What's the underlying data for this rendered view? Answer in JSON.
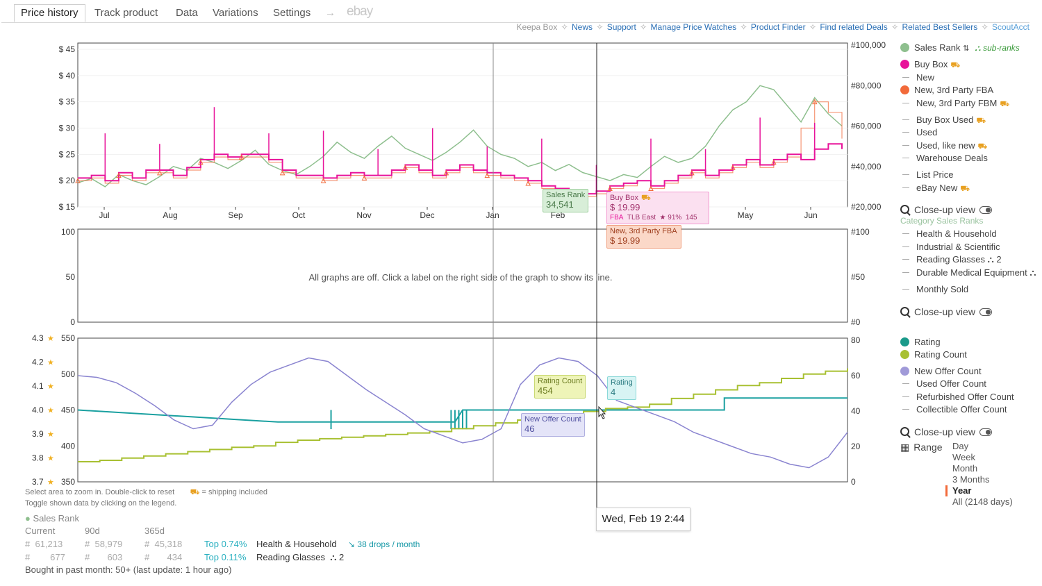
{
  "tabs": {
    "price_history": "Price history",
    "track_product": "Track product",
    "data": "Data",
    "variations": "Variations",
    "settings": "Settings",
    "arrow": "→",
    "ebay": "ebay"
  },
  "links": {
    "keepa_box": "Keepa Box",
    "news": "News",
    "support": "Support",
    "manage_price_watches": "Manage Price Watches",
    "product_finder": "Product Finder",
    "find_related_deals": "Find related Deals",
    "related_best_sellers": "Related Best Sellers",
    "scoutacct": "ScoutAcct",
    "separator": "✧"
  },
  "legend_top": {
    "sales_rank": "Sales Rank",
    "sub_ranks": "sub-ranks",
    "buy_box": "Buy Box",
    "new": "New",
    "new_3p_fba": "New, 3rd Party FBA",
    "new_3p_fbm": "New, 3rd Party FBM",
    "buy_box_used": "Buy Box Used",
    "used": "Used",
    "used_like_new": "Used, like new",
    "warehouse_deals": "Warehouse Deals",
    "list_price": "List Price",
    "ebay_new": "eBay New",
    "close_up_view": "Close-up view",
    "colors": {
      "sales_rank": "#8ebf8e",
      "buy_box": "#e8139a",
      "new_3p_fba": "#f26a3a"
    }
  },
  "legend_mid": {
    "category_sales_ranks": "Category Sales Ranks",
    "health_household": "Health & Household",
    "industrial_scientific": "Industrial & Scientific",
    "reading_glasses": "Reading Glasses",
    "reading_glasses_count": "2",
    "durable_medical": "Durable Medical Equipment",
    "monthly_sold": "Monthly Sold",
    "close_up_view": "Close-up view"
  },
  "legend_bottom": {
    "rating": "Rating",
    "rating_count": "Rating Count",
    "new_offer_count": "New Offer Count",
    "used_offer_count": "Used Offer Count",
    "refurbished_offer_count": "Refurbished Offer Count",
    "collectible_offer_count": "Collectible Offer Count",
    "close_up_view": "Close-up view",
    "range": "Range",
    "range_options": [
      "Day",
      "Week",
      "Month",
      "3 Months",
      "Year",
      "All (2148 days)"
    ],
    "range_selected": "Year",
    "colors": {
      "rating": "#1a9a8a",
      "rating_count": "#a8c032",
      "new_offer_count": "#a09ad8"
    }
  },
  "tooltips": {
    "sales_rank_label": "Sales Rank",
    "sales_rank_value": "34,541",
    "buy_box_label": "Buy Box",
    "buy_box_value": "$ 19.99",
    "buy_box_fba": "FBA",
    "buy_box_seller": "TLB East",
    "buy_box_rating": "★ 91%",
    "buy_box_count": "145",
    "fba_label": "New, 3rd Party FBA",
    "fba_value": "$ 19.99",
    "rating_count_label": "Rating Count",
    "rating_count_value": "454",
    "rating_label": "Rating",
    "rating_value": "4",
    "offer_label": "New Offer Count",
    "offer_value": "46",
    "date": "Wed, Feb 19 2:44"
  },
  "middle_message": "All graphs are off. Click a label on the right side of the graph to show its line.",
  "notes": {
    "zoom": "Select area to zoom in. Double-click to reset",
    "shipping": "= shipping included",
    "toggle": "Toggle shown data by clicking on the legend."
  },
  "sales_rank_table": {
    "title": "Sales Rank",
    "headers": [
      "Current",
      "90d",
      "365d"
    ],
    "hash": "#",
    "rows": [
      {
        "current": "61,213",
        "d90": "58,979",
        "d365": "45,318",
        "top": "Top 0.74%",
        "category": "Health & Household",
        "drops": "38 drops / month"
      },
      {
        "current": "677",
        "d90": "603",
        "d365": "434",
        "top": "Top 0.11%",
        "category": "Reading Glasses",
        "count": "2"
      }
    ],
    "bought": "Bought in past month: 50+ (last update: 1 hour ago)"
  },
  "chart_data": [
    {
      "type": "line",
      "x_ticks": [
        "Jul",
        "Aug",
        "Sep",
        "Oct",
        "Nov",
        "Dec",
        "Jan",
        "Feb",
        "May",
        "Jun"
      ],
      "y_left_ticks": [
        "$ 45",
        "$ 40",
        "$ 35",
        "$ 30",
        "$ 25",
        "$ 20",
        "$ 15"
      ],
      "y_right_ticks": [
        "#100,000",
        "#80,000",
        "#60,000",
        "#40,000",
        "#20,000"
      ],
      "ylim_left": [
        15,
        45
      ],
      "ylim_right": [
        20000,
        100000
      ],
      "series": [
        {
          "name": "Sales Rank",
          "axis": "right",
          "values": [
            32000,
            34000,
            30000,
            36000,
            33000,
            31000,
            35000,
            40000,
            38000,
            44000,
            42000,
            39000,
            43000,
            48000,
            41000,
            38000,
            36000,
            40000,
            45000,
            52000,
            47000,
            44000,
            50000,
            55000,
            49000,
            46000,
            43000,
            47000,
            52000,
            58000,
            50000,
            46000,
            44000,
            40000,
            42000,
            38000,
            41000,
            37000,
            35000,
            33000,
            36000,
            34541,
            40000,
            45000,
            42000,
            44000,
            50000,
            60000,
            68000,
            72000,
            80000,
            78000,
            70000,
            62000,
            74000,
            66000,
            60000
          ]
        },
        {
          "name": "Buy Box",
          "axis": "left",
          "values": [
            20.5,
            21,
            20,
            21.5,
            20.5,
            22,
            22,
            21,
            22.5,
            24,
            25,
            24.5,
            25,
            25,
            24,
            22,
            21,
            21,
            20.5,
            21,
            21.5,
            21,
            21,
            22,
            23,
            22,
            21,
            22,
            23,
            22,
            21.5,
            21,
            20.5,
            20,
            19,
            18.5,
            18,
            17.5,
            18,
            19,
            19.5,
            19.99,
            19,
            20,
            21,
            22,
            21,
            22,
            23,
            24,
            23,
            24,
            25,
            24,
            26,
            27,
            26
          ]
        },
        {
          "name": "New, 3rd Party FBA",
          "axis": "left",
          "values": [
            20,
            20.5,
            19.5,
            21,
            20,
            21.5,
            21.5,
            20.5,
            22,
            23.5,
            24.5,
            24,
            24.5,
            24.5,
            23.5,
            21.5,
            20.5,
            20.5,
            20,
            20.5,
            21,
            20.5,
            20.5,
            21.5,
            22.5,
            21.5,
            20.5,
            21.5,
            22.5,
            21.5,
            21,
            20.5,
            20,
            19.5,
            18.5,
            18,
            17.5,
            17,
            17.5,
            18.5,
            19,
            19.99,
            18.5,
            19.5,
            20.5,
            21.5,
            20.5,
            21.5,
            22.5,
            23.5,
            22.5,
            23.5,
            24.5,
            30,
            35,
            33,
            28
          ]
        }
      ]
    },
    {
      "type": "line",
      "y_left_ticks": [
        "100",
        "50",
        "0"
      ],
      "y_right_ticks": [
        "#100",
        "#50",
        "#0"
      ],
      "ylim": [
        0,
        100
      ],
      "series": []
    },
    {
      "type": "line",
      "y_rating_ticks": [
        "4.3",
        "4.2",
        "4.1",
        "4.0",
        "3.9",
        "3.8",
        "3.7"
      ],
      "y_count_ticks": [
        "550",
        "500",
        "450",
        "400",
        "350"
      ],
      "y_right_ticks": [
        "80",
        "60",
        "40",
        "20",
        "0"
      ],
      "ylim_count": [
        350,
        550
      ],
      "ylim_rating": [
        3.7,
        4.3
      ],
      "ylim_right": [
        0,
        80
      ],
      "series": [
        {
          "name": "Rating",
          "axis": "rating",
          "steps": [
            [
              0,
              4.0
            ],
            [
              0.26,
              3.95
            ],
            [
              0.49,
              3.95
            ],
            [
              0.5,
              4.0
            ],
            [
              0.84,
              4.0
            ],
            [
              0.84,
              4.05
            ],
            [
              1.0,
              4.05
            ]
          ]
        },
        {
          "name": "Rating Count",
          "axis": "count",
          "values": [
            378,
            380,
            383,
            386,
            389,
            392,
            395,
            398,
            400,
            405,
            408,
            410,
            412,
            414,
            416,
            418,
            420,
            424,
            428,
            432,
            436,
            440,
            444,
            448,
            452,
            454,
            458,
            466,
            472,
            478,
            484,
            488,
            494,
            500,
            504,
            508
          ]
        },
        {
          "name": "New Offer Count",
          "axis": "right",
          "values": [
            60,
            59,
            56,
            50,
            43,
            35,
            30,
            32,
            45,
            55,
            62,
            66,
            70,
            68,
            60,
            52,
            45,
            38,
            30,
            26,
            22,
            24,
            30,
            55,
            66,
            70,
            68,
            60,
            46,
            42,
            38,
            34,
            28,
            24,
            20,
            16,
            14,
            10,
            8,
            14,
            28
          ]
        }
      ]
    }
  ]
}
